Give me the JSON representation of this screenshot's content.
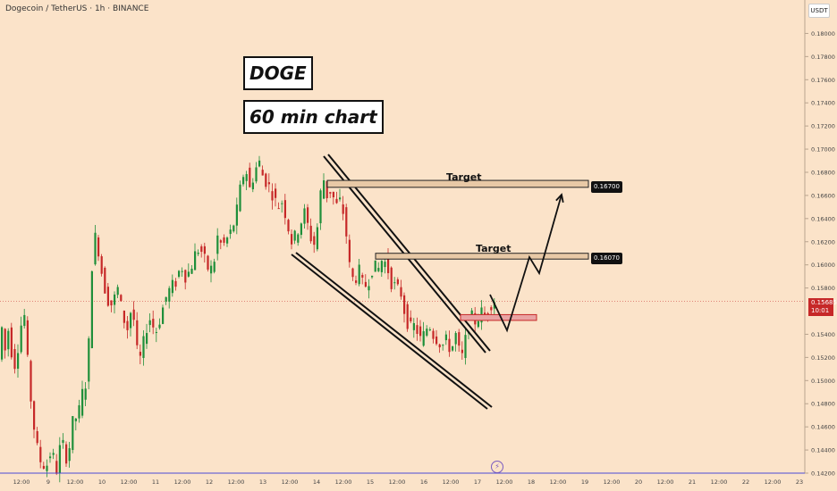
{
  "header": {
    "symbol_line": "Dogecoin / TetherUS · 1h · BINANCE",
    "currency": "USDT"
  },
  "annotations": {
    "doge": "DOGE",
    "timeframe": "60 min chart",
    "target_label": "Target"
  },
  "price_tags": {
    "target_high": "0.16700",
    "target_low": "0.16070",
    "current_price": "0.15685",
    "countdown": "10:01"
  },
  "colors": {
    "background": "#fbe3c9",
    "bull": "#1f8f3a",
    "bear": "#c62828",
    "drawing": "#111111",
    "zone_fill": "#e9a3a3",
    "axis_line": "#4a4ad6"
  },
  "icons": {
    "replay": "lightning-icon"
  },
  "chart_data": {
    "type": "candlestick",
    "y_axis": {
      "side": "right",
      "range": [
        0.142,
        0.1815
      ],
      "ticks": [
        "0.18000",
        "0.17800",
        "0.17600",
        "0.17400",
        "0.17200",
        "0.17000",
        "0.16800",
        "0.16600",
        "0.16400",
        "0.16200",
        "0.16000",
        "0.15800",
        "0.15400",
        "0.15200",
        "0.15000",
        "0.14800",
        "0.14600",
        "0.14400",
        "0.14200"
      ]
    },
    "x_axis": {
      "ticks": [
        "12:00",
        "9",
        "12:00",
        "10",
        "12:00",
        "11",
        "12:00",
        "12",
        "12:00",
        "13",
        "12:00",
        "14",
        "12:00",
        "15",
        "12:00",
        "16",
        "12:00",
        "17",
        "12:00",
        "18",
        "12:00",
        "19",
        "12:00",
        "20",
        "12:00",
        "21",
        "12:00",
        "22",
        "12:00",
        "23"
      ]
    },
    "path": [
      [
        0,
        0.15
      ],
      [
        3,
        0.1555
      ],
      [
        8,
        0.1525
      ],
      [
        12,
        0.1545
      ],
      [
        18,
        0.151
      ],
      [
        24,
        0.1535
      ],
      [
        29,
        0.1565
      ],
      [
        33,
        0.152
      ],
      [
        38,
        0.1475
      ],
      [
        43,
        0.1445
      ],
      [
        48,
        0.143
      ],
      [
        54,
        0.1425
      ],
      [
        60,
        0.144
      ],
      [
        66,
        0.1422
      ],
      [
        71,
        0.145
      ],
      [
        78,
        0.143
      ],
      [
        84,
        0.1465
      ],
      [
        90,
        0.147
      ],
      [
        96,
        0.1495
      ],
      [
        101,
        0.15
      ],
      [
        103,
        0.158
      ],
      [
        106,
        0.1605
      ],
      [
        110,
        0.163
      ],
      [
        113,
        0.161
      ],
      [
        118,
        0.1585
      ],
      [
        123,
        0.157
      ],
      [
        128,
        0.1565
      ],
      [
        134,
        0.158
      ],
      [
        140,
        0.1555
      ],
      [
        145,
        0.1545
      ],
      [
        150,
        0.1565
      ],
      [
        153,
        0.1548
      ],
      [
        157,
        0.1515
      ],
      [
        160,
        0.152
      ],
      [
        166,
        0.1545
      ],
      [
        171,
        0.1555
      ],
      [
        176,
        0.154
      ],
      [
        182,
        0.1555
      ],
      [
        187,
        0.157
      ],
      [
        193,
        0.158
      ],
      [
        199,
        0.1585
      ],
      [
        205,
        0.16
      ],
      [
        210,
        0.159
      ],
      [
        215,
        0.1595
      ],
      [
        221,
        0.161
      ],
      [
        226,
        0.1615
      ],
      [
        231,
        0.1605
      ],
      [
        236,
        0.1595
      ],
      [
        241,
        0.1598
      ],
      [
        246,
        0.1625
      ],
      [
        251,
        0.1615
      ],
      [
        256,
        0.1622
      ],
      [
        262,
        0.163
      ],
      [
        267,
        0.1645
      ],
      [
        272,
        0.167
      ],
      [
        277,
        0.1685
      ],
      [
        282,
        0.1665
      ],
      [
        287,
        0.168
      ],
      [
        292,
        0.169
      ],
      [
        297,
        0.1675
      ],
      [
        302,
        0.167
      ],
      [
        308,
        0.166
      ],
      [
        313,
        0.165
      ],
      [
        318,
        0.1655
      ],
      [
        323,
        0.164
      ],
      [
        328,
        0.162
      ],
      [
        333,
        0.1625
      ],
      [
        338,
        0.1635
      ],
      [
        343,
        0.1645
      ],
      [
        348,
        0.163
      ],
      [
        353,
        0.1615
      ],
      [
        358,
        0.1635
      ],
      [
        363,
        0.168
      ],
      [
        368,
        0.166
      ],
      [
        373,
        0.1665
      ],
      [
        378,
        0.165
      ],
      [
        383,
        0.1655
      ],
      [
        388,
        0.164
      ],
      [
        393,
        0.16
      ],
      [
        398,
        0.1585
      ],
      [
        404,
        0.1595
      ],
      [
        409,
        0.158
      ],
      [
        414,
        0.1585
      ],
      [
        420,
        0.16
      ],
      [
        425,
        0.1595
      ],
      [
        430,
        0.1605
      ],
      [
        435,
        0.16
      ],
      [
        440,
        0.1585
      ],
      [
        446,
        0.158
      ],
      [
        451,
        0.1575
      ],
      [
        456,
        0.1555
      ],
      [
        461,
        0.1545
      ],
      [
        467,
        0.1548
      ],
      [
        472,
        0.1535
      ],
      [
        477,
        0.154
      ],
      [
        482,
        0.155
      ],
      [
        487,
        0.154
      ],
      [
        492,
        0.1535
      ],
      [
        497,
        0.153
      ],
      [
        502,
        0.1535
      ],
      [
        507,
        0.1525
      ],
      [
        512,
        0.154
      ],
      [
        516,
        0.1525
      ],
      [
        520,
        0.152
      ],
      [
        525,
        0.1545
      ],
      [
        530,
        0.1555
      ],
      [
        535,
        0.155
      ],
      [
        540,
        0.156
      ],
      [
        545,
        0.1555
      ],
      [
        550,
        0.1565
      ],
      [
        555,
        0.157
      ]
    ],
    "drawings": {
      "channel_upper": [
        [
          362,
          175
        ],
        [
          543,
          395
        ]
      ],
      "channel_lower": [
        [
          326,
          285
        ],
        [
          545,
          458
        ]
      ],
      "target_high_zone": [
        0.1673,
        0.1667
      ],
      "target_low_zone": [
        0.161,
        0.1605
      ],
      "support_zone": [
        0.1557,
        0.1552
      ],
      "projection": [
        [
          548,
          330
        ],
        [
          567,
          370
        ],
        [
          592,
          288
        ],
        [
          603,
          306
        ],
        [
          628,
          218
        ]
      ]
    }
  }
}
